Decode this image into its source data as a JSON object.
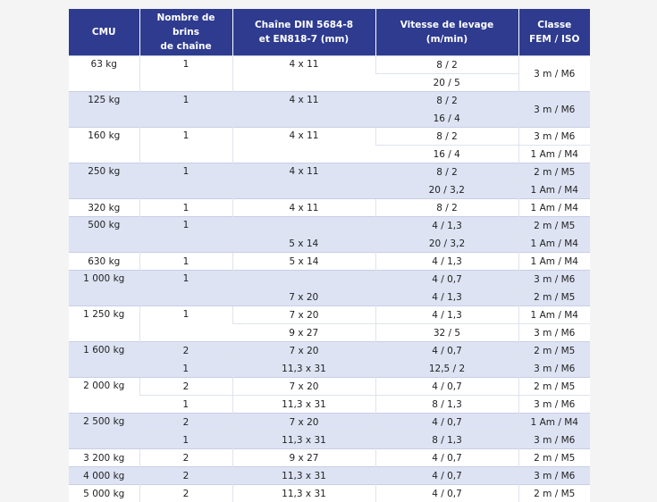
{
  "headers": [
    {
      "line1": "CMU",
      "line2": ""
    },
    {
      "line1": "Nombre de brins",
      "line2": "de chaîne"
    },
    {
      "line1": "Chaîne DIN 5684-8",
      "line2": "et EN818-7 (mm)"
    },
    {
      "line1": "Vitesse de levage",
      "line2": "(m/min)"
    },
    {
      "line1": "Classe",
      "line2": "FEM / ISO"
    }
  ],
  "groups": [
    {
      "cmu": "63 kg",
      "rows": [
        {
          "brins": "1",
          "chaine": "4 x 11",
          "vitesse": "8 / 2",
          "classe": "3 m / M6"
        },
        {
          "brins": "",
          "chaine": "",
          "vitesse": "20 / 5",
          "classe": ""
        }
      ],
      "merge": {
        "cmu": true,
        "brins": true,
        "chaine": true,
        "classe": true
      }
    },
    {
      "cmu": "125 kg",
      "rows": [
        {
          "brins": "1",
          "chaine": "4 x 11",
          "vitesse": "8 / 2",
          "classe": "3 m / M6"
        },
        {
          "brins": "",
          "chaine": "",
          "vitesse": "16 / 4",
          "classe": ""
        }
      ],
      "merge": {
        "cmu": true,
        "brins": true,
        "chaine": true,
        "classe": true
      }
    },
    {
      "cmu": "160 kg",
      "rows": [
        {
          "brins": "1",
          "chaine": "4 x 11",
          "vitesse": "8 / 2",
          "classe": "3 m / M6"
        },
        {
          "brins": "",
          "chaine": "",
          "vitesse": "16 / 4",
          "classe": "1 Am / M4"
        }
      ],
      "merge": {
        "cmu": true,
        "brins": true,
        "chaine": true,
        "classe": false
      }
    },
    {
      "cmu": "250 kg",
      "rows": [
        {
          "brins": "1",
          "chaine": "4 x 11",
          "vitesse": "8 / 2",
          "classe": "2 m / M5"
        },
        {
          "brins": "",
          "chaine": "",
          "vitesse": "20 / 3,2",
          "classe": "1 Am / M4"
        }
      ],
      "merge": {
        "cmu": true,
        "brins": true,
        "chaine": true,
        "classe": false
      }
    },
    {
      "cmu": "320 kg",
      "rows": [
        {
          "brins": "1",
          "chaine": "4 x 11",
          "vitesse": "8 / 2",
          "classe": "1 Am / M4"
        }
      ],
      "merge": {}
    },
    {
      "cmu": "500 kg",
      "rows": [
        {
          "brins": "1",
          "chaine": "",
          "vitesse": "4 / 1,3",
          "classe": "2 m / M5"
        },
        {
          "brins": "",
          "chaine": "5 x 14",
          "vitesse": "20 / 3,2",
          "classe": "1 Am / M4"
        }
      ],
      "merge": {
        "cmu": true,
        "brins": true,
        "chaine": false,
        "classe": false
      }
    },
    {
      "cmu": "630 kg",
      "rows": [
        {
          "brins": "1",
          "chaine": "5 x 14",
          "vitesse": "4 / 1,3",
          "classe": "1 Am / M4"
        }
      ],
      "merge": {}
    },
    {
      "cmu": "1 000 kg",
      "rows": [
        {
          "brins": "1",
          "chaine": "",
          "vitesse": "4 / 0,7",
          "classe": "3 m / M6"
        },
        {
          "brins": "",
          "chaine": "7 x 20",
          "vitesse": "4 / 1,3",
          "classe": "2 m / M5"
        }
      ],
      "merge": {
        "cmu": true,
        "brins": true,
        "chaine": false,
        "classe": false
      }
    },
    {
      "cmu": "1 250 kg",
      "rows": [
        {
          "brins": "1",
          "chaine": "7 x 20",
          "vitesse": "4 / 1,3",
          "classe": "1 Am / M4"
        },
        {
          "brins": "",
          "chaine": "9 x 27",
          "vitesse": "32 / 5",
          "classe": "3 m / M6"
        }
      ],
      "merge": {
        "cmu": true,
        "brins": true,
        "chaine": false,
        "classe": false
      }
    },
    {
      "cmu": "1 600 kg",
      "rows": [
        {
          "brins": "2",
          "chaine": "7 x 20",
          "vitesse": "4 / 0,7",
          "classe": "2 m / M5"
        },
        {
          "brins": "1",
          "chaine": "11,3 x 31",
          "vitesse": "12,5 / 2",
          "classe": "3 m / M6"
        }
      ],
      "merge": {
        "cmu": true,
        "brins": false,
        "chaine": false,
        "classe": false
      }
    },
    {
      "cmu": "2 000 kg",
      "rows": [
        {
          "brins": "2",
          "chaine": "7 x 20",
          "vitesse": "4 / 0,7",
          "classe": "2 m / M5"
        },
        {
          "brins": "1",
          "chaine": "11,3 x 31",
          "vitesse": "8 / 1,3",
          "classe": "3 m / M6"
        }
      ],
      "merge": {
        "cmu": true,
        "brins": false,
        "chaine": false,
        "classe": false
      }
    },
    {
      "cmu": "2 500 kg",
      "rows": [
        {
          "brins": "2",
          "chaine": "7 x 20",
          "vitesse": "4 / 0,7",
          "classe": "1 Am / M4"
        },
        {
          "brins": "1",
          "chaine": "11,3 x 31",
          "vitesse": "8 / 1,3",
          "classe": "3 m / M6"
        }
      ],
      "merge": {
        "cmu": true,
        "brins": false,
        "chaine": false,
        "classe": false
      }
    },
    {
      "cmu": "3 200 kg",
      "rows": [
        {
          "brins": "2",
          "chaine": "9 x 27",
          "vitesse": "4 / 0,7",
          "classe": "2 m / M5"
        }
      ],
      "merge": {}
    },
    {
      "cmu": "4 000 kg",
      "rows": [
        {
          "brins": "2",
          "chaine": "11,3 x 31",
          "vitesse": "4 / 0,7",
          "classe": "3 m / M6"
        }
      ],
      "merge": {}
    },
    {
      "cmu": "5 000 kg",
      "rows": [
        {
          "brins": "2",
          "chaine": "11,3 x 31",
          "vitesse": "4 / 0,7",
          "classe": "2 m / M5"
        }
      ],
      "merge": {}
    }
  ]
}
